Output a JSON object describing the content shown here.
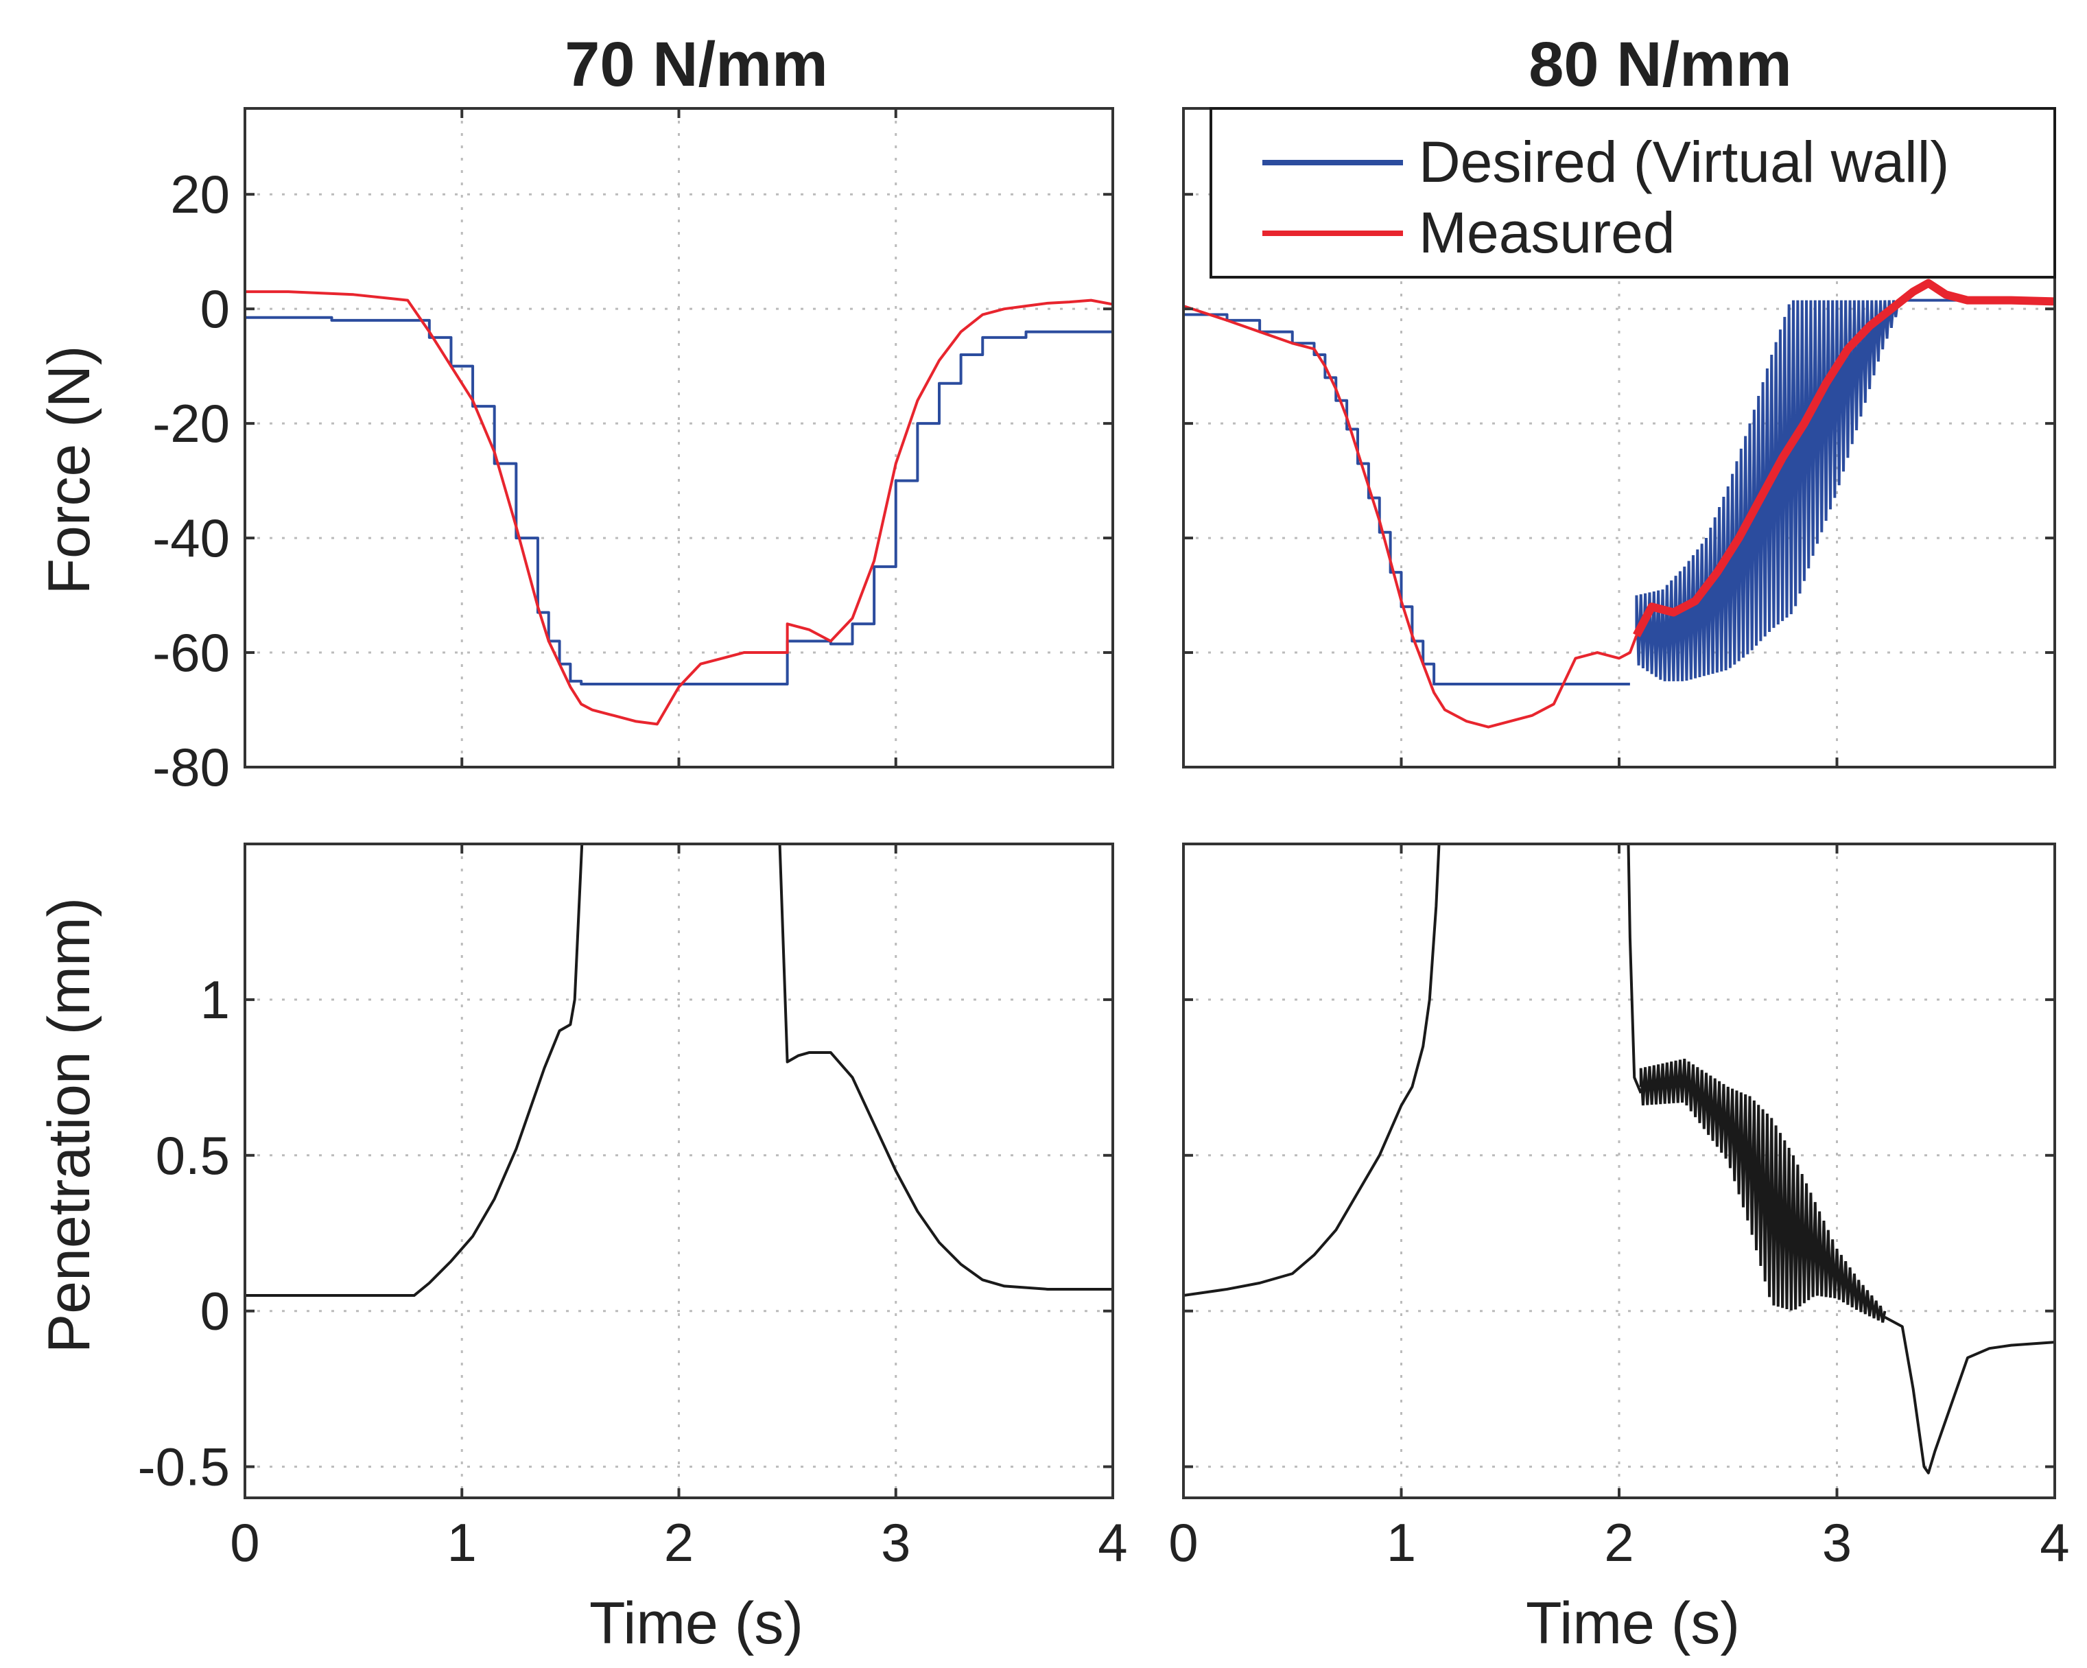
{
  "figure": {
    "colors": {
      "desired": "#2B4C9E",
      "measured": "#E8252E",
      "penetration": "#1a1a1a",
      "axis": "#333333",
      "grid": "#bbbbbb"
    }
  },
  "chart_data": [
    {
      "id": "force-70",
      "type": "line",
      "title": "70 N/mm",
      "xlabel": "",
      "ylabel": "Force (N)",
      "xlim": [
        0,
        4
      ],
      "ylim": [
        -80,
        35
      ],
      "xticks": [
        0,
        1,
        2,
        3,
        4
      ],
      "yticks": [
        -80,
        -60,
        -40,
        -20,
        0,
        20
      ],
      "ytick_labels": [
        "-80",
        "-60",
        "-40",
        "-20",
        "0",
        "20"
      ],
      "grid": true,
      "series": [
        {
          "name": "Desired (Virtual wall)",
          "color": "#2B4C9E",
          "step": true,
          "x": [
            0,
            0.4,
            0.75,
            0.85,
            0.95,
            1.05,
            1.15,
            1.25,
            1.35,
            1.4,
            1.45,
            1.5,
            1.55,
            1.6,
            1.7,
            2.0,
            2.3,
            2.5,
            2.5,
            2.6,
            2.7,
            2.8,
            2.9,
            3.0,
            3.1,
            3.2,
            3.3,
            3.4,
            3.6,
            4.0
          ],
          "y": [
            -1.5,
            -2,
            -2,
            -5,
            -10,
            -17,
            -27,
            -40,
            -53,
            -58,
            -62,
            -65,
            -65.5,
            -65.5,
            -65.5,
            -65.5,
            -65.5,
            -65.5,
            -58,
            -58,
            -58.5,
            -55,
            -45,
            -30,
            -20,
            -13,
            -8,
            -5,
            -4,
            -3
          ]
        },
        {
          "name": "Measured",
          "color": "#E8252E",
          "x": [
            0,
            0.2,
            0.5,
            0.75,
            0.85,
            0.95,
            1.05,
            1.15,
            1.25,
            1.35,
            1.4,
            1.45,
            1.5,
            1.55,
            1.6,
            1.7,
            1.8,
            1.9,
            2.0,
            2.1,
            2.2,
            2.3,
            2.4,
            2.5,
            2.5,
            2.6,
            2.7,
            2.8,
            2.9,
            3.0,
            3.1,
            3.2,
            3.3,
            3.4,
            3.5,
            3.6,
            3.7,
            3.8,
            3.9,
            4.0
          ],
          "y": [
            3,
            3,
            2.5,
            1.5,
            -4,
            -10,
            -16,
            -25,
            -38,
            -52,
            -58,
            -62,
            -66,
            -69,
            -70,
            -71,
            -72,
            -72.5,
            -66,
            -62,
            -61,
            -60,
            -60,
            -60,
            -55,
            -56,
            -58,
            -54,
            -44,
            -27,
            -16,
            -9,
            -4,
            -1,
            0,
            0.5,
            1,
            1.2,
            1.5,
            0.8
          ]
        }
      ]
    },
    {
      "id": "force-80",
      "type": "line",
      "title": "80 N/mm",
      "xlabel": "",
      "ylabel": "",
      "xlim": [
        0,
        4
      ],
      "ylim": [
        -80,
        35
      ],
      "xticks": [
        0,
        1,
        2,
        3,
        4
      ],
      "yticks": [
        -80,
        -60,
        -40,
        -20,
        0,
        20
      ],
      "grid": true,
      "legend": {
        "position": "top-right",
        "entries": [
          "Desired (Virtual wall)",
          "Measured"
        ]
      },
      "series": [
        {
          "name": "Desired (Virtual wall)",
          "color": "#2B4C9E",
          "step": true,
          "x": [
            0,
            0.2,
            0.35,
            0.5,
            0.6,
            0.65,
            0.7,
            0.75,
            0.8,
            0.85,
            0.9,
            0.95,
            1.0,
            1.05,
            1.1,
            1.15,
            1.2,
            1.5,
            1.8,
            2.05
          ],
          "y": [
            -1,
            -2,
            -4,
            -6,
            -8,
            -12,
            -16,
            -21,
            -27,
            -33,
            -39,
            -46,
            -52,
            -58,
            -62,
            -65.5,
            -65.5,
            -65.5,
            -65.5,
            -65.5
          ],
          "oscillation": {
            "x_start": 2.08,
            "x_end": 3.28,
            "period": 0.02,
            "center": [
              [
                2.08,
                -56
              ],
              [
                2.2,
                -57
              ],
              [
                2.3,
                -55
              ],
              [
                2.4,
                -52
              ],
              [
                2.5,
                -47
              ],
              [
                2.6,
                -40
              ],
              [
                2.7,
                -32
              ],
              [
                2.8,
                -25
              ],
              [
                2.9,
                -17
              ],
              [
                3.0,
                -10
              ],
              [
                3.1,
                -4
              ],
              [
                3.2,
                0
              ],
              [
                3.28,
                1.5
              ]
            ],
            "halfspan": [
              [
                2.08,
                6
              ],
              [
                2.2,
                8
              ],
              [
                2.4,
                12
              ],
              [
                2.6,
                20
              ],
              [
                2.8,
                28
              ],
              [
                3.0,
                22
              ],
              [
                3.1,
                16
              ],
              [
                3.2,
                8
              ],
              [
                3.28,
                2
              ]
            ],
            "clip_max": 1.5
          },
          "tail": {
            "x": [
              3.28,
              4.0
            ],
            "y": [
              1.5,
              1.5
            ]
          }
        },
        {
          "name": "Measured",
          "color": "#E8252E",
          "thick_after": 2.08,
          "x": [
            0,
            0.2,
            0.35,
            0.5,
            0.6,
            0.65,
            0.7,
            0.75,
            0.8,
            0.85,
            0.9,
            0.95,
            1.0,
            1.05,
            1.1,
            1.15,
            1.2,
            1.3,
            1.4,
            1.5,
            1.6,
            1.7,
            1.8,
            1.9,
            2.0,
            2.05,
            2.08,
            2.15,
            2.25,
            2.35,
            2.45,
            2.55,
            2.65,
            2.75,
            2.85,
            2.95,
            3.05,
            3.15,
            3.25,
            3.35,
            3.42,
            3.5,
            3.6,
            3.7,
            3.8,
            4.0
          ],
          "y": [
            0.5,
            -2,
            -4,
            -6,
            -7,
            -10,
            -14,
            -19,
            -25,
            -31,
            -37,
            -44,
            -51,
            -57,
            -62,
            -67,
            -70,
            -72,
            -73,
            -72,
            -71,
            -69,
            -61,
            -60,
            -61,
            -60,
            -57,
            -52,
            -53,
            -51,
            -46,
            -40,
            -33,
            -26,
            -20,
            -13,
            -7,
            -3,
            0,
            3,
            4.5,
            2.5,
            1.5,
            1.5,
            1.5,
            1.3
          ]
        }
      ]
    },
    {
      "id": "pen-70",
      "type": "line",
      "title": "",
      "xlabel": "Time (s)",
      "ylabel": "Penetration (mm)",
      "xlim": [
        0,
        4
      ],
      "ylim": [
        -0.6,
        1.5
      ],
      "xticks": [
        0,
        1,
        2,
        3,
        4
      ],
      "xtick_labels": [
        "0",
        "1",
        "2",
        "3",
        "4"
      ],
      "yticks": [
        -0.5,
        0,
        0.5,
        1
      ],
      "ytick_labels": [
        "-0.5",
        "0",
        "0.5",
        "1"
      ],
      "grid": true,
      "series": [
        {
          "name": "penetration",
          "color": "#1a1a1a",
          "segments": [
            {
              "x": [
                0,
                0.5,
                0.78,
                0.85,
                0.95,
                1.05,
                1.15,
                1.25,
                1.32,
                1.38,
                1.45,
                1.5,
                1.52,
                1.53,
                1.54,
                1.55,
                1.56
              ],
              "y": [
                0.05,
                0.05,
                0.05,
                0.09,
                0.16,
                0.24,
                0.36,
                0.52,
                0.66,
                0.78,
                0.9,
                0.92,
                1.0,
                1.15,
                1.3,
                1.45,
                1.6
              ]
            },
            {
              "x": [
                2.46,
                2.48,
                2.5,
                2.55,
                2.6,
                2.7,
                2.8,
                2.9,
                3.0,
                3.1,
                3.2,
                3.3,
                3.4,
                3.5,
                3.7,
                4.0
              ],
              "y": [
                1.6,
                1.2,
                0.8,
                0.82,
                0.83,
                0.83,
                0.75,
                0.6,
                0.45,
                0.32,
                0.22,
                0.15,
                0.1,
                0.08,
                0.07,
                0.07
              ]
            }
          ]
        }
      ]
    },
    {
      "id": "pen-80",
      "type": "line",
      "title": "",
      "xlabel": "Time (s)",
      "ylabel": "",
      "xlim": [
        0,
        4
      ],
      "ylim": [
        -0.6,
        1.5
      ],
      "xticks": [
        0,
        1,
        2,
        3,
        4
      ],
      "xtick_labels": [
        "0",
        "1",
        "2",
        "3",
        "4"
      ],
      "yticks": [
        -0.5,
        0,
        0.5,
        1
      ],
      "grid": true,
      "series": [
        {
          "name": "penetration",
          "color": "#1a1a1a",
          "segments": [
            {
              "x": [
                0,
                0.2,
                0.35,
                0.5,
                0.6,
                0.7,
                0.8,
                0.9,
                0.95,
                1.0,
                1.05,
                1.1,
                1.13,
                1.16,
                1.18
              ],
              "y": [
                0.05,
                0.07,
                0.09,
                0.12,
                0.18,
                0.26,
                0.38,
                0.5,
                0.58,
                0.66,
                0.72,
                0.85,
                1.0,
                1.3,
                1.6
              ]
            },
            {
              "x": [
                2.04,
                2.05,
                2.07,
                2.1
              ],
              "y": [
                1.6,
                1.2,
                0.75,
                0.7
              ]
            },
            {
              "x": [
                3.22,
                3.3,
                3.35,
                3.4,
                3.42,
                3.45,
                3.5,
                3.55,
                3.6,
                3.7,
                3.8,
                4.0
              ],
              "y": [
                -0.02,
                -0.05,
                -0.25,
                -0.5,
                -0.52,
                -0.45,
                -0.35,
                -0.25,
                -0.15,
                -0.12,
                -0.11,
                -0.1
              ]
            }
          ],
          "oscillation": {
            "x_start": 2.1,
            "x_end": 3.22,
            "period": 0.02,
            "center": [
              [
                2.1,
                0.72
              ],
              [
                2.3,
                0.74
              ],
              [
                2.5,
                0.6
              ],
              [
                2.6,
                0.48
              ],
              [
                2.7,
                0.32
              ],
              [
                2.8,
                0.25
              ],
              [
                2.9,
                0.2
              ],
              [
                3.0,
                0.12
              ],
              [
                3.1,
                0.05
              ],
              [
                3.22,
                -0.02
              ]
            ],
            "halfspan": [
              [
                2.1,
                0.06
              ],
              [
                2.3,
                0.07
              ],
              [
                2.5,
                0.12
              ],
              [
                2.7,
                0.3
              ],
              [
                2.8,
                0.25
              ],
              [
                2.9,
                0.15
              ],
              [
                3.0,
                0.08
              ],
              [
                3.1,
                0.05
              ],
              [
                3.22,
                0.02
              ]
            ]
          }
        }
      ]
    }
  ]
}
